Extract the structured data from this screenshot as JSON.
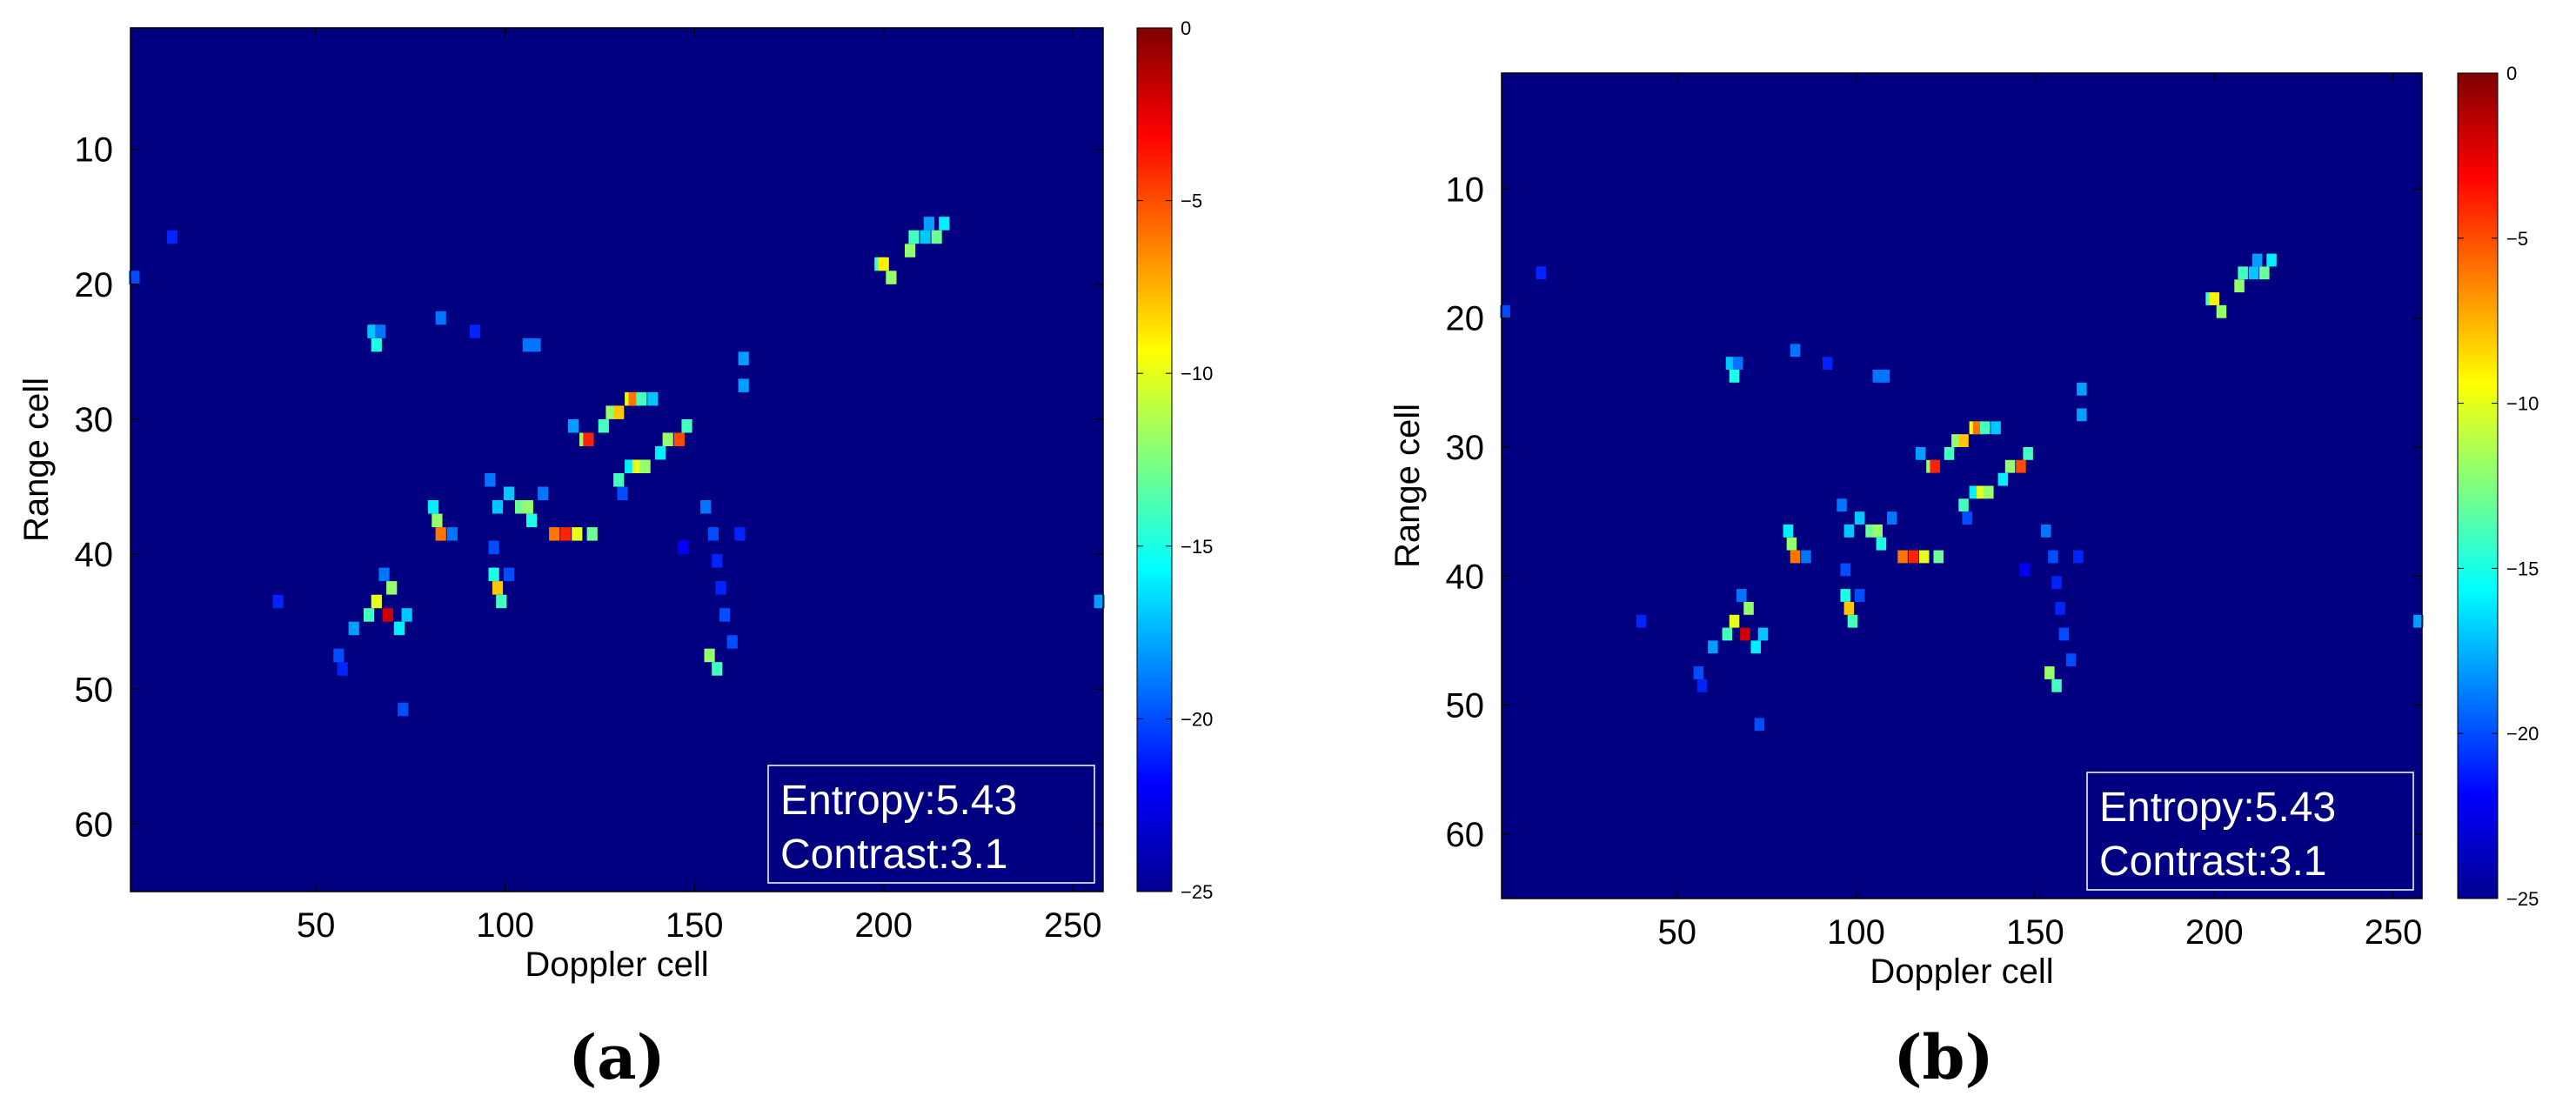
{
  "chart_data": [
    {
      "type": "heatmap",
      "panel_label": "(a)",
      "xlabel": "Doppler cell",
      "ylabel": "Range cell",
      "xticks": [
        50,
        100,
        150,
        200,
        250
      ],
      "yticks": [
        10,
        20,
        30,
        40,
        50,
        60
      ],
      "xlim": [
        1,
        258
      ],
      "ylim": [
        1,
        65
      ],
      "y_inverted": true,
      "colorbar": {
        "min": -25,
        "max": 0,
        "ticks": [
          0,
          -5,
          -10,
          -15,
          -20,
          -25
        ],
        "colormap": "jet"
      },
      "info": {
        "entropy": "Entropy:5.43",
        "contrast": "Contrast:3.1"
      },
      "background_value": -25,
      "points": [
        [
          40,
          43,
          -21
        ],
        [
          60,
          45,
          -18
        ],
        [
          64,
          44,
          -14
        ],
        [
          66,
          43,
          -10
        ],
        [
          69,
          44,
          -2
        ],
        [
          70,
          42,
          -12
        ],
        [
          72,
          45,
          -16
        ],
        [
          74,
          44,
          -17
        ],
        [
          68,
          41,
          -19
        ],
        [
          56,
          47,
          -20
        ],
        [
          57,
          48,
          -21
        ],
        [
          65,
          23,
          -17
        ],
        [
          66,
          24,
          -15
        ],
        [
          67,
          23,
          -19
        ],
        [
          83,
          22,
          -19
        ],
        [
          92,
          23,
          -21
        ],
        [
          106,
          24,
          -19
        ],
        [
          108,
          24,
          -19
        ],
        [
          82,
          37,
          -12
        ],
        [
          83,
          38,
          -6
        ],
        [
          81,
          36,
          -16
        ],
        [
          86,
          38,
          -19
        ],
        [
          97,
          41,
          -15
        ],
        [
          98,
          42,
          -8
        ],
        [
          99,
          43,
          -14
        ],
        [
          101,
          41,
          -20
        ],
        [
          97,
          39,
          -20
        ],
        [
          96,
          34,
          -19
        ],
        [
          98,
          36,
          -17
        ],
        [
          101,
          35,
          -17
        ],
        [
          104,
          36,
          -13
        ],
        [
          106,
          36,
          -12
        ],
        [
          107,
          37,
          -15
        ],
        [
          110,
          35,
          -19
        ],
        [
          113,
          38,
          -6
        ],
        [
          116,
          38,
          -4
        ],
        [
          119,
          38,
          -10
        ],
        [
          123,
          38,
          -13
        ],
        [
          118,
          30,
          -18
        ],
        [
          121,
          31,
          -12
        ],
        [
          122,
          31,
          -4
        ],
        [
          126,
          30,
          -14
        ],
        [
          128,
          29,
          -12
        ],
        [
          130,
          29,
          -8
        ],
        [
          133,
          28,
          -10
        ],
        [
          134,
          28,
          -6
        ],
        [
          136,
          28,
          -14
        ],
        [
          139,
          28,
          -17
        ],
        [
          133,
          33,
          -16
        ],
        [
          135,
          33,
          -10
        ],
        [
          137,
          33,
          -12
        ],
        [
          130,
          34,
          -14
        ],
        [
          131,
          35,
          -20
        ],
        [
          141,
          32,
          -16
        ],
        [
          143,
          31,
          -12
        ],
        [
          146,
          31,
          -5
        ],
        [
          148,
          30,
          -14
        ],
        [
          153,
          36,
          -19
        ],
        [
          155,
          38,
          -20
        ],
        [
          156,
          40,
          -21
        ],
        [
          157,
          42,
          -21
        ],
        [
          158,
          44,
          -20
        ],
        [
          160,
          46,
          -20
        ],
        [
          163,
          25,
          -18
        ],
        [
          163,
          27,
          -18
        ],
        [
          162,
          38,
          -21
        ],
        [
          147,
          39,
          -22
        ],
        [
          154,
          47,
          -12
        ],
        [
          156,
          48,
          -14
        ],
        [
          199,
          18,
          -14
        ],
        [
          200,
          18,
          -9
        ],
        [
          202,
          19,
          -12
        ],
        [
          207,
          17,
          -12
        ],
        [
          208,
          16,
          -14
        ],
        [
          211,
          16,
          -17
        ],
        [
          212,
          15,
          -18
        ],
        [
          214,
          16,
          -13
        ],
        [
          216,
          15,
          -16
        ],
        [
          2,
          19,
          -20
        ],
        [
          12,
          16,
          -21
        ],
        [
          73,
          51,
          -20
        ],
        [
          257,
          43,
          -18
        ]
      ]
    },
    {
      "type": "heatmap",
      "panel_label": "(b)",
      "xlabel": "Doppler cell",
      "ylabel": "Range cell",
      "xticks": [
        50,
        100,
        150,
        200,
        250
      ],
      "yticks": [
        10,
        20,
        30,
        40,
        50,
        60
      ],
      "xlim": [
        1,
        258
      ],
      "ylim": [
        1,
        65
      ],
      "y_inverted": true,
      "colorbar": {
        "min": -25,
        "max": 0,
        "ticks": [
          0,
          -5,
          -10,
          -15,
          -20,
          -25
        ],
        "colormap": "jet"
      },
      "info": {
        "entropy": "Entropy:5.43",
        "contrast": "Contrast:3.1"
      },
      "background_value": -25,
      "points": [
        [
          40,
          43,
          -21
        ],
        [
          60,
          45,
          -18
        ],
        [
          64,
          44,
          -14
        ],
        [
          66,
          43,
          -10
        ],
        [
          69,
          44,
          -2
        ],
        [
          70,
          42,
          -12
        ],
        [
          72,
          45,
          -16
        ],
        [
          74,
          44,
          -17
        ],
        [
          68,
          41,
          -19
        ],
        [
          56,
          47,
          -20
        ],
        [
          57,
          48,
          -21
        ],
        [
          65,
          23,
          -17
        ],
        [
          66,
          24,
          -15
        ],
        [
          67,
          23,
          -19
        ],
        [
          83,
          22,
          -19
        ],
        [
          92,
          23,
          -21
        ],
        [
          106,
          24,
          -19
        ],
        [
          108,
          24,
          -19
        ],
        [
          82,
          37,
          -12
        ],
        [
          83,
          38,
          -6
        ],
        [
          81,
          36,
          -16
        ],
        [
          86,
          38,
          -19
        ],
        [
          97,
          41,
          -15
        ],
        [
          98,
          42,
          -8
        ],
        [
          99,
          43,
          -14
        ],
        [
          101,
          41,
          -20
        ],
        [
          97,
          39,
          -20
        ],
        [
          96,
          34,
          -19
        ],
        [
          98,
          36,
          -17
        ],
        [
          101,
          35,
          -17
        ],
        [
          104,
          36,
          -13
        ],
        [
          106,
          36,
          -12
        ],
        [
          107,
          37,
          -15
        ],
        [
          110,
          35,
          -19
        ],
        [
          113,
          38,
          -6
        ],
        [
          116,
          38,
          -4
        ],
        [
          119,
          38,
          -10
        ],
        [
          123,
          38,
          -13
        ],
        [
          118,
          30,
          -18
        ],
        [
          121,
          31,
          -12
        ],
        [
          122,
          31,
          -4
        ],
        [
          126,
          30,
          -14
        ],
        [
          128,
          29,
          -12
        ],
        [
          130,
          29,
          -8
        ],
        [
          133,
          28,
          -10
        ],
        [
          134,
          28,
          -6
        ],
        [
          136,
          28,
          -14
        ],
        [
          139,
          28,
          -17
        ],
        [
          133,
          33,
          -16
        ],
        [
          135,
          33,
          -10
        ],
        [
          137,
          33,
          -12
        ],
        [
          130,
          34,
          -14
        ],
        [
          131,
          35,
          -20
        ],
        [
          141,
          32,
          -16
        ],
        [
          143,
          31,
          -12
        ],
        [
          146,
          31,
          -5
        ],
        [
          148,
          30,
          -14
        ],
        [
          153,
          36,
          -19
        ],
        [
          155,
          38,
          -20
        ],
        [
          156,
          40,
          -21
        ],
        [
          157,
          42,
          -21
        ],
        [
          158,
          44,
          -20
        ],
        [
          160,
          46,
          -20
        ],
        [
          163,
          25,
          -18
        ],
        [
          163,
          27,
          -18
        ],
        [
          162,
          38,
          -21
        ],
        [
          147,
          39,
          -22
        ],
        [
          154,
          47,
          -12
        ],
        [
          156,
          48,
          -14
        ],
        [
          199,
          18,
          -14
        ],
        [
          200,
          18,
          -9
        ],
        [
          202,
          19,
          -12
        ],
        [
          207,
          17,
          -12
        ],
        [
          208,
          16,
          -14
        ],
        [
          211,
          16,
          -17
        ],
        [
          212,
          15,
          -18
        ],
        [
          214,
          16,
          -13
        ],
        [
          216,
          15,
          -16
        ],
        [
          2,
          19,
          -20
        ],
        [
          12,
          16,
          -21
        ],
        [
          73,
          51,
          -20
        ],
        [
          257,
          43,
          -18
        ]
      ]
    }
  ]
}
